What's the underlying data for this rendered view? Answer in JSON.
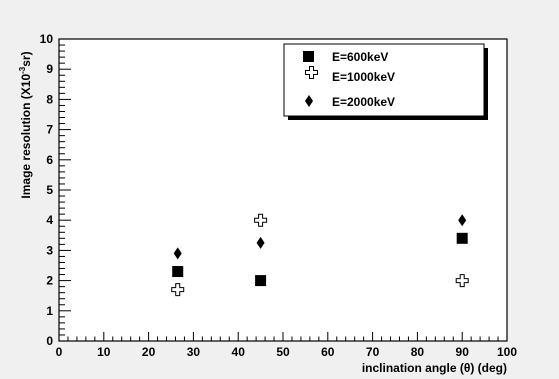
{
  "chart_data": {
    "type": "scatter",
    "title": "",
    "xlabel": "inclination angle (θ) (deg)",
    "ylabel": {
      "main": "Image resolution (X10",
      "sup": "-3",
      "unit": "sr)"
    },
    "xlim": [
      0,
      100
    ],
    "ylim": [
      0,
      10
    ],
    "x_ticks": [
      "0",
      "10",
      "20",
      "30",
      "40",
      "50",
      "60",
      "70",
      "80",
      "90",
      "100"
    ],
    "y_ticks": [
      "0",
      "1",
      "2",
      "3",
      "4",
      "5",
      "6",
      "7",
      "8",
      "9",
      "10"
    ],
    "grid": false,
    "legend_position": "top-right",
    "series": [
      {
        "name": "E=600keV",
        "marker": "filled-square",
        "x": [
          26.5,
          45,
          90
        ],
        "y": [
          2.3,
          2.0,
          3.4
        ]
      },
      {
        "name": "E=1000keV",
        "marker": "open-cross",
        "x": [
          26.5,
          45,
          90
        ],
        "y": [
          1.7,
          4.0,
          2.0
        ]
      },
      {
        "name": "E=2000keV",
        "marker": "filled-diamond",
        "x": [
          26.5,
          45,
          90
        ],
        "y": [
          2.9,
          3.25,
          4.0
        ]
      }
    ],
    "colors": {
      "background": "#f0f0f0",
      "plot_area": "#ffffff",
      "marker": "#000000"
    }
  }
}
